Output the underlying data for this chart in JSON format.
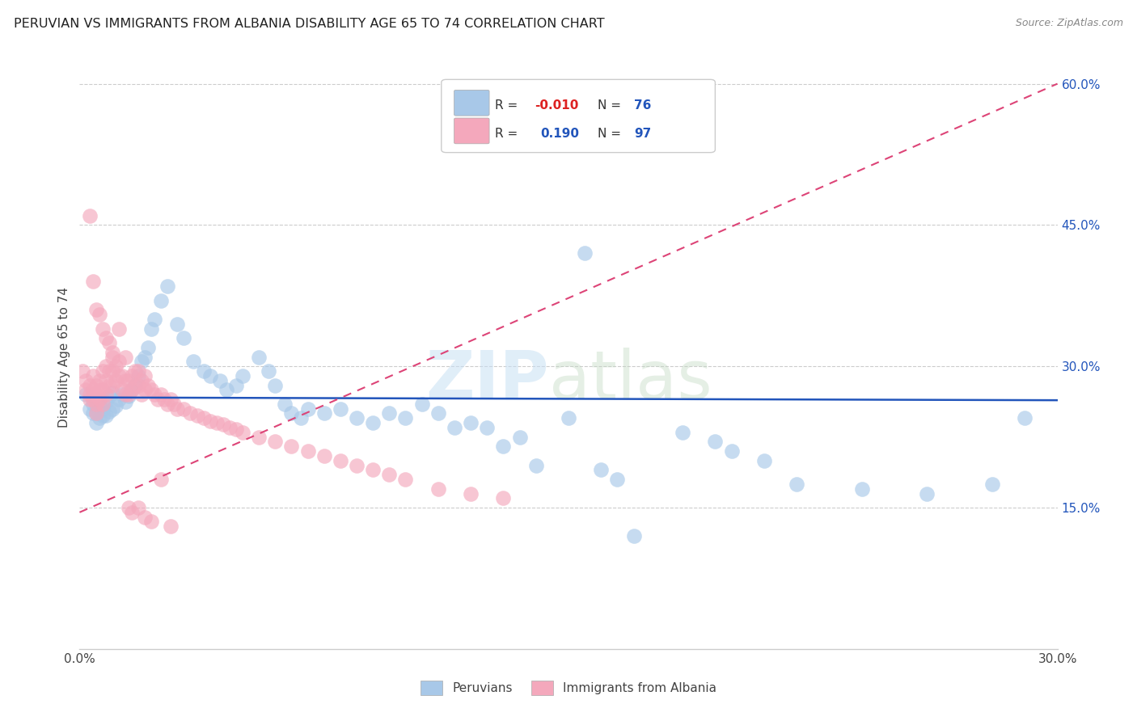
{
  "title": "PERUVIAN VS IMMIGRANTS FROM ALBANIA DISABILITY AGE 65 TO 74 CORRELATION CHART",
  "source": "Source: ZipAtlas.com",
  "ylabel": "Disability Age 65 to 74",
  "legend_label_1": "Peruvians",
  "legend_label_2": "Immigrants from Albania",
  "R1": -0.01,
  "N1": 76,
  "R2": 0.19,
  "N2": 97,
  "xlim": [
    0.0,
    0.3
  ],
  "ylim": [
    0.0,
    0.62
  ],
  "y_ticks_right": [
    0.15,
    0.3,
    0.45,
    0.6
  ],
  "y_tick_labels_right": [
    "15.0%",
    "30.0%",
    "45.0%",
    "60.0%"
  ],
  "color_blue": "#A8C8E8",
  "color_pink": "#F4A8BC",
  "color_blue_line": "#2255BB",
  "color_pink_line": "#DD4477",
  "peruvian_x": [
    0.002,
    0.003,
    0.004,
    0.004,
    0.005,
    0.005,
    0.005,
    0.006,
    0.006,
    0.007,
    0.007,
    0.008,
    0.008,
    0.009,
    0.009,
    0.01,
    0.01,
    0.011,
    0.012,
    0.013,
    0.014,
    0.015,
    0.016,
    0.017,
    0.018,
    0.019,
    0.02,
    0.021,
    0.022,
    0.023,
    0.025,
    0.027,
    0.03,
    0.032,
    0.035,
    0.038,
    0.04,
    0.043,
    0.045,
    0.048,
    0.05,
    0.055,
    0.058,
    0.06,
    0.063,
    0.065,
    0.068,
    0.07,
    0.075,
    0.08,
    0.085,
    0.09,
    0.095,
    0.1,
    0.105,
    0.11,
    0.115,
    0.12,
    0.125,
    0.13,
    0.135,
    0.14,
    0.15,
    0.155,
    0.16,
    0.165,
    0.17,
    0.185,
    0.195,
    0.2,
    0.21,
    0.22,
    0.24,
    0.26,
    0.28,
    0.29
  ],
  "peruvian_y": [
    0.27,
    0.255,
    0.26,
    0.25,
    0.265,
    0.25,
    0.24,
    0.258,
    0.245,
    0.255,
    0.248,
    0.262,
    0.248,
    0.268,
    0.252,
    0.272,
    0.255,
    0.258,
    0.265,
    0.27,
    0.262,
    0.268,
    0.275,
    0.28,
    0.29,
    0.305,
    0.31,
    0.32,
    0.34,
    0.35,
    0.37,
    0.385,
    0.345,
    0.33,
    0.305,
    0.295,
    0.29,
    0.285,
    0.275,
    0.28,
    0.29,
    0.31,
    0.295,
    0.28,
    0.26,
    0.25,
    0.245,
    0.255,
    0.25,
    0.255,
    0.245,
    0.24,
    0.25,
    0.245,
    0.26,
    0.25,
    0.235,
    0.24,
    0.235,
    0.215,
    0.225,
    0.195,
    0.245,
    0.42,
    0.19,
    0.18,
    0.12,
    0.23,
    0.22,
    0.21,
    0.2,
    0.175,
    0.17,
    0.165,
    0.175,
    0.245
  ],
  "albania_x": [
    0.001,
    0.002,
    0.002,
    0.003,
    0.003,
    0.003,
    0.004,
    0.004,
    0.004,
    0.005,
    0.005,
    0.005,
    0.005,
    0.006,
    0.006,
    0.006,
    0.007,
    0.007,
    0.007,
    0.008,
    0.008,
    0.008,
    0.009,
    0.009,
    0.01,
    0.01,
    0.01,
    0.011,
    0.011,
    0.012,
    0.012,
    0.013,
    0.013,
    0.014,
    0.014,
    0.015,
    0.015,
    0.016,
    0.016,
    0.017,
    0.017,
    0.018,
    0.018,
    0.019,
    0.019,
    0.02,
    0.02,
    0.021,
    0.022,
    0.023,
    0.024,
    0.025,
    0.026,
    0.027,
    0.028,
    0.029,
    0.03,
    0.032,
    0.034,
    0.036,
    0.038,
    0.04,
    0.042,
    0.044,
    0.046,
    0.048,
    0.05,
    0.055,
    0.06,
    0.065,
    0.07,
    0.075,
    0.08,
    0.085,
    0.09,
    0.095,
    0.1,
    0.11,
    0.12,
    0.13,
    0.003,
    0.004,
    0.005,
    0.006,
    0.007,
    0.008,
    0.009,
    0.01,
    0.012,
    0.014,
    0.015,
    0.016,
    0.018,
    0.02,
    0.022,
    0.025,
    0.028
  ],
  "albania_y": [
    0.295,
    0.285,
    0.275,
    0.28,
    0.27,
    0.265,
    0.29,
    0.275,
    0.265,
    0.28,
    0.27,
    0.26,
    0.25,
    0.285,
    0.275,
    0.265,
    0.295,
    0.275,
    0.26,
    0.3,
    0.285,
    0.27,
    0.295,
    0.28,
    0.31,
    0.295,
    0.28,
    0.3,
    0.285,
    0.305,
    0.29,
    0.29,
    0.275,
    0.285,
    0.27,
    0.285,
    0.27,
    0.29,
    0.275,
    0.295,
    0.28,
    0.295,
    0.28,
    0.285,
    0.27,
    0.29,
    0.275,
    0.28,
    0.275,
    0.27,
    0.265,
    0.27,
    0.265,
    0.26,
    0.265,
    0.26,
    0.255,
    0.255,
    0.25,
    0.248,
    0.245,
    0.242,
    0.24,
    0.238,
    0.235,
    0.233,
    0.23,
    0.225,
    0.22,
    0.215,
    0.21,
    0.205,
    0.2,
    0.195,
    0.19,
    0.185,
    0.18,
    0.17,
    0.165,
    0.16,
    0.46,
    0.39,
    0.36,
    0.355,
    0.34,
    0.33,
    0.325,
    0.315,
    0.34,
    0.31,
    0.15,
    0.145,
    0.15,
    0.14,
    0.135,
    0.18,
    0.13
  ]
}
